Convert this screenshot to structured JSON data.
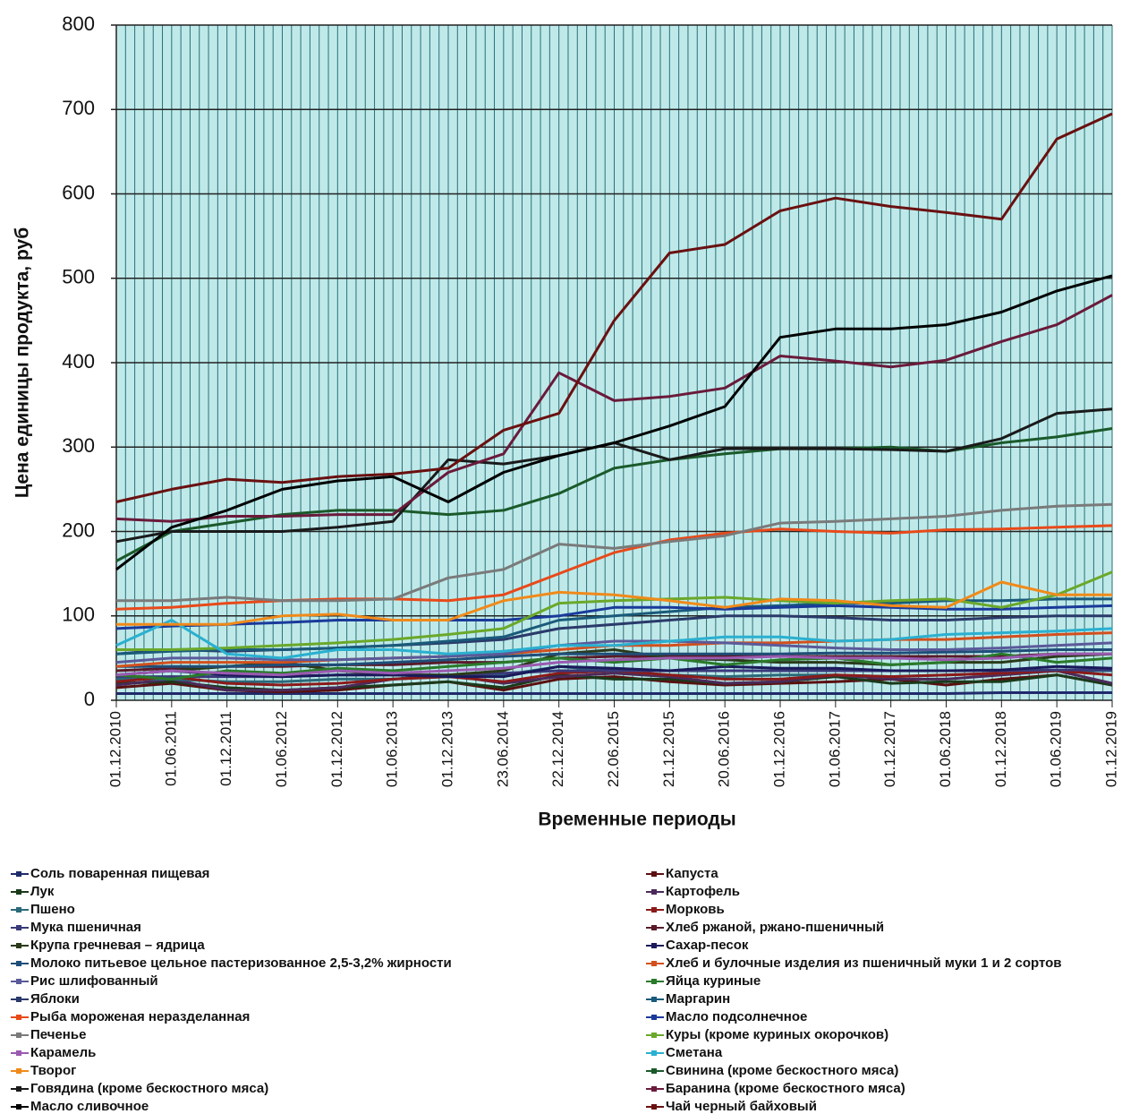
{
  "chart_data": {
    "type": "line",
    "y_label": "Цена единицы продукта, руб",
    "x_label": "Временные периоды",
    "categories": [
      "01.12.2010",
      "01.06.2011",
      "01.12.2011",
      "01.06.2012",
      "01.12.2012",
      "01.06.2013",
      "01.12.2013",
      "23.06.2014",
      "22.12.2014",
      "22.06.2015",
      "21.12.2015",
      "20.06.2016",
      "01.12.2016",
      "01.06.2017",
      "01.12.2017",
      "01.06.2018",
      "01.12.2018",
      "01.06.2019",
      "01.12.2019"
    ],
    "ylim": [
      0,
      800
    ],
    "yticks": [
      0,
      100,
      200,
      300,
      400,
      500,
      600,
      700,
      800
    ],
    "grid": true,
    "legend": "bottom",
    "series": [
      {
        "name": "Соль поваренная пищевая",
        "color": "#1f2a6b",
        "values": [
          8,
          8,
          8,
          8,
          8,
          8,
          8,
          8,
          8,
          8,
          8,
          8,
          8,
          8,
          8,
          8,
          9,
          9,
          9
        ]
      },
      {
        "name": "Капуста",
        "color": "#5a1010",
        "values": [
          15,
          20,
          12,
          10,
          12,
          18,
          22,
          12,
          25,
          28,
          22,
          18,
          20,
          22,
          25,
          18,
          25,
          30,
          18
        ]
      },
      {
        "name": "Лук",
        "color": "#1a3a1a",
        "values": [
          20,
          22,
          15,
          12,
          15,
          18,
          22,
          15,
          30,
          25,
          25,
          20,
          22,
          28,
          20,
          22,
          22,
          30,
          18
        ]
      },
      {
        "name": "Картофель",
        "color": "#4b2a5a",
        "values": [
          18,
          25,
          12,
          12,
          15,
          25,
          30,
          20,
          28,
          32,
          28,
          20,
          22,
          30,
          25,
          25,
          30,
          35,
          20
        ]
      },
      {
        "name": "Пшено",
        "color": "#2a6a7a",
        "values": [
          25,
          25,
          22,
          22,
          25,
          25,
          28,
          30,
          40,
          35,
          30,
          28,
          30,
          30,
          28,
          30,
          32,
          35,
          35
        ]
      },
      {
        "name": "Морковь",
        "color": "#8b1a1a",
        "values": [
          22,
          28,
          20,
          18,
          20,
          25,
          28,
          22,
          32,
          35,
          30,
          25,
          25,
          30,
          28,
          30,
          32,
          35,
          30
        ]
      },
      {
        "name": "Мука пшеничная",
        "color": "#3a3a7a",
        "values": [
          28,
          28,
          28,
          28,
          30,
          30,
          30,
          32,
          35,
          35,
          35,
          35,
          35,
          35,
          35,
          35,
          35,
          36,
          36
        ]
      },
      {
        "name": "Хлеб ржаной, ржано-пшеничный",
        "color": "#5a1a2a",
        "values": [
          35,
          38,
          40,
          40,
          42,
          42,
          45,
          45,
          50,
          52,
          52,
          52,
          52,
          52,
          52,
          52,
          52,
          55,
          55
        ]
      },
      {
        "name": "Крупа гречневая – ядрица",
        "color": "#2a3a1a",
        "values": [
          30,
          35,
          40,
          45,
          35,
          30,
          30,
          35,
          55,
          60,
          50,
          48,
          45,
          45,
          42,
          45,
          45,
          52,
          55
        ]
      },
      {
        "name": "Сахар-песок",
        "color": "#1a1a5a",
        "values": [
          30,
          35,
          30,
          28,
          30,
          30,
          28,
          28,
          40,
          38,
          35,
          40,
          38,
          38,
          35,
          35,
          36,
          40,
          38
        ]
      },
      {
        "name": "Молоко питьевое цельное пастеризованное 2,5-3,2% жирности",
        "color": "#1f4e79",
        "values": [
          40,
          40,
          40,
          42,
          42,
          45,
          48,
          52,
          55,
          55,
          55,
          55,
          55,
          56,
          56,
          57,
          58,
          60,
          60
        ]
      },
      {
        "name": "Хлеб и булочные изделия из пшеничный муки 1 и 2 сортов",
        "color": "#d2501e",
        "values": [
          40,
          45,
          45,
          45,
          48,
          50,
          52,
          55,
          60,
          65,
          65,
          68,
          68,
          70,
          72,
          72,
          75,
          78,
          80
        ]
      },
      {
        "name": "Рис шлифованный",
        "color": "#5a5a9a",
        "values": [
          45,
          50,
          50,
          48,
          48,
          50,
          52,
          55,
          65,
          70,
          70,
          68,
          65,
          62,
          60,
          60,
          62,
          65,
          68
        ]
      },
      {
        "name": "Яйца куриные",
        "color": "#2a7a2a",
        "values": [
          30,
          25,
          35,
          32,
          38,
          35,
          40,
          45,
          50,
          45,
          50,
          42,
          48,
          50,
          42,
          45,
          55,
          45,
          50
        ]
      },
      {
        "name": "Яблоки",
        "color": "#2a3a6a",
        "values": [
          55,
          60,
          58,
          60,
          62,
          65,
          68,
          72,
          85,
          90,
          95,
          100,
          100,
          98,
          95,
          95,
          98,
          100,
          100
        ]
      },
      {
        "name": "Маргарин",
        "color": "#1a5a7a",
        "values": [
          55,
          58,
          60,
          60,
          62,
          65,
          70,
          75,
          95,
          100,
          105,
          110,
          112,
          115,
          115,
          118,
          118,
          120,
          120
        ]
      },
      {
        "name": "Рыба мороженая неразделанная",
        "color": "#e84a1a",
        "values": [
          108,
          110,
          115,
          118,
          120,
          120,
          118,
          125,
          150,
          175,
          190,
          198,
          203,
          200,
          198,
          202,
          203,
          205,
          207
        ]
      },
      {
        "name": "Масло подсолнечное",
        "color": "#1a3a9a",
        "values": [
          85,
          88,
          90,
          92,
          95,
          95,
          95,
          95,
          100,
          110,
          110,
          108,
          110,
          112,
          110,
          108,
          108,
          110,
          112
        ]
      },
      {
        "name": "Печенье",
        "color": "#7a7a7a",
        "values": [
          118,
          118,
          122,
          118,
          118,
          120,
          145,
          155,
          185,
          180,
          188,
          195,
          210,
          212,
          215,
          218,
          225,
          230,
          232
        ]
      },
      {
        "name": "Куры (кроме куриных окорочков)",
        "color": "#6aa82a",
        "values": [
          60,
          60,
          62,
          65,
          68,
          72,
          78,
          85,
          115,
          118,
          120,
          122,
          118,
          115,
          118,
          120,
          110,
          125,
          152
        ]
      },
      {
        "name": "Карамель",
        "color": "#9a5ab0",
        "values": [
          30,
          35,
          32,
          30,
          35,
          32,
          35,
          38,
          45,
          48,
          50,
          50,
          52,
          50,
          50,
          48,
          50,
          55,
          55
        ]
      },
      {
        "name": "Сметана",
        "color": "#2ab0d0",
        "values": [
          65,
          95,
          55,
          50,
          60,
          60,
          55,
          58,
          65,
          65,
          70,
          75,
          75,
          70,
          72,
          78,
          80,
          82,
          85
        ]
      },
      {
        "name": "Творог",
        "color": "#f08a1a",
        "values": [
          90,
          90,
          90,
          100,
          102,
          95,
          95,
          118,
          128,
          125,
          118,
          110,
          120,
          118,
          112,
          110,
          140,
          125,
          125
        ]
      },
      {
        "name": "Свинина (кроме бескостного мяса)",
        "color": "#1a5a2a",
        "values": [
          165,
          200,
          210,
          220,
          225,
          225,
          220,
          225,
          245,
          275,
          285,
          292,
          298,
          298,
          300,
          295,
          305,
          312,
          322
        ]
      },
      {
        "name": "Говядина (кроме бескостного мяса)",
        "color": "#1a1a1a",
        "values": [
          188,
          200,
          200,
          200,
          205,
          212,
          285,
          280,
          290,
          305,
          285,
          298,
          298,
          298,
          297,
          295,
          310,
          340,
          345
        ]
      },
      {
        "name": "Баранина (кроме бескостного мяса)",
        "color": "#6a1a3a",
        "values": [
          215,
          212,
          218,
          218,
          220,
          220,
          270,
          292,
          388,
          355,
          360,
          370,
          408,
          402,
          395,
          403,
          425,
          445,
          480
        ]
      },
      {
        "name": "Масло сливочное",
        "color": "#000000",
        "values": [
          155,
          205,
          225,
          250,
          260,
          265,
          235,
          270,
          290,
          305,
          325,
          348,
          430,
          440,
          440,
          445,
          460,
          485,
          503
        ]
      },
      {
        "name": "Чай черный байховый",
        "color": "#6a1010",
        "values": [
          235,
          250,
          262,
          258,
          265,
          268,
          275,
          320,
          340,
          450,
          530,
          540,
          580,
          595,
          585,
          578,
          570,
          665,
          695
        ]
      }
    ]
  }
}
